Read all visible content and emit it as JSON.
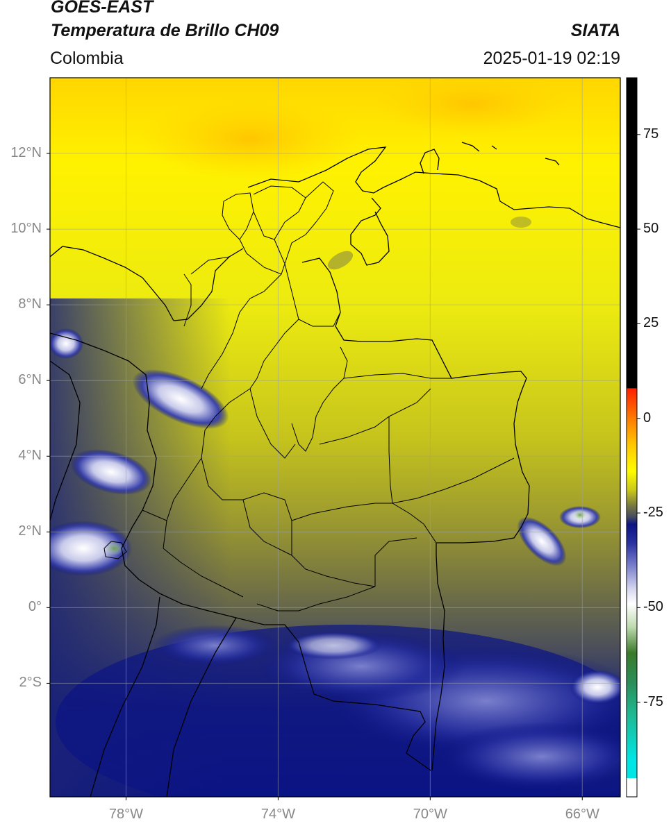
{
  "header": {
    "satellite": "GOES-EAST",
    "product": "Temperatura de Brillo CH09",
    "region": "Colombia",
    "brand": "SIATA",
    "timestamp": "2025-01-19 02:19"
  },
  "map": {
    "lon_range": [
      -80,
      -65
    ],
    "lat_range": [
      -5.0,
      14.0
    ],
    "lat_ticks": [
      {
        "value": 12,
        "label": "12°N"
      },
      {
        "value": 10,
        "label": "10°N"
      },
      {
        "value": 8,
        "label": "8°N"
      },
      {
        "value": 6,
        "label": "6°N"
      },
      {
        "value": 4,
        "label": "4°N"
      },
      {
        "value": 2,
        "label": "2°N"
      },
      {
        "value": 0,
        "label": "0°"
      },
      {
        "value": -2,
        "label": "2°S"
      }
    ],
    "lon_ticks": [
      {
        "value": -78,
        "label": "78°W"
      },
      {
        "value": -74,
        "label": "74°W"
      },
      {
        "value": -70,
        "label": "70°W"
      },
      {
        "value": -66,
        "label": "66°W"
      }
    ],
    "grid": true
  },
  "colorbar": {
    "range": [
      -100,
      90
    ],
    "ticks": [
      {
        "value": 75,
        "label": "75"
      },
      {
        "value": 50,
        "label": "50"
      },
      {
        "value": 25,
        "label": "25"
      },
      {
        "value": 0,
        "label": "0"
      },
      {
        "value": -25,
        "label": "-25"
      },
      {
        "value": -50,
        "label": "-50"
      },
      {
        "value": -75,
        "label": "-75"
      }
    ],
    "stops": [
      {
        "value": 90,
        "color": "#000000"
      },
      {
        "value": 8,
        "color": "#000000"
      },
      {
        "value": 7.9,
        "color": "#ff2000"
      },
      {
        "value": 0,
        "color": "#ff7b00"
      },
      {
        "value": -7,
        "color": "#ffc800"
      },
      {
        "value": -14,
        "color": "#fffc00"
      },
      {
        "value": -19,
        "color": "#c9c81a"
      },
      {
        "value": -23,
        "color": "#7a7a40"
      },
      {
        "value": -26,
        "color": "#464b60"
      },
      {
        "value": -28,
        "color": "#0c1484"
      },
      {
        "value": -33,
        "color": "#2a32a2"
      },
      {
        "value": -39,
        "color": "#7a80cc"
      },
      {
        "value": -45,
        "color": "#d4d6ee"
      },
      {
        "value": -49,
        "color": "#ffffff"
      },
      {
        "value": -55,
        "color": "#c0dcb0"
      },
      {
        "value": -62,
        "color": "#3a7a2a"
      },
      {
        "value": -70,
        "color": "#2a8f5a"
      },
      {
        "value": -78,
        "color": "#20b890"
      },
      {
        "value": -90,
        "color": "#00e5e5"
      },
      {
        "value": -95,
        "color": "#00e5e5"
      },
      {
        "value": -95.1,
        "color": "#ffffff"
      },
      {
        "value": -100,
        "color": "#ffffff"
      }
    ]
  },
  "colors": {
    "cold_cloud": "#0c1484",
    "warm_dry": "#fffc00",
    "mid": "#7a7a40",
    "border": "#000000"
  }
}
